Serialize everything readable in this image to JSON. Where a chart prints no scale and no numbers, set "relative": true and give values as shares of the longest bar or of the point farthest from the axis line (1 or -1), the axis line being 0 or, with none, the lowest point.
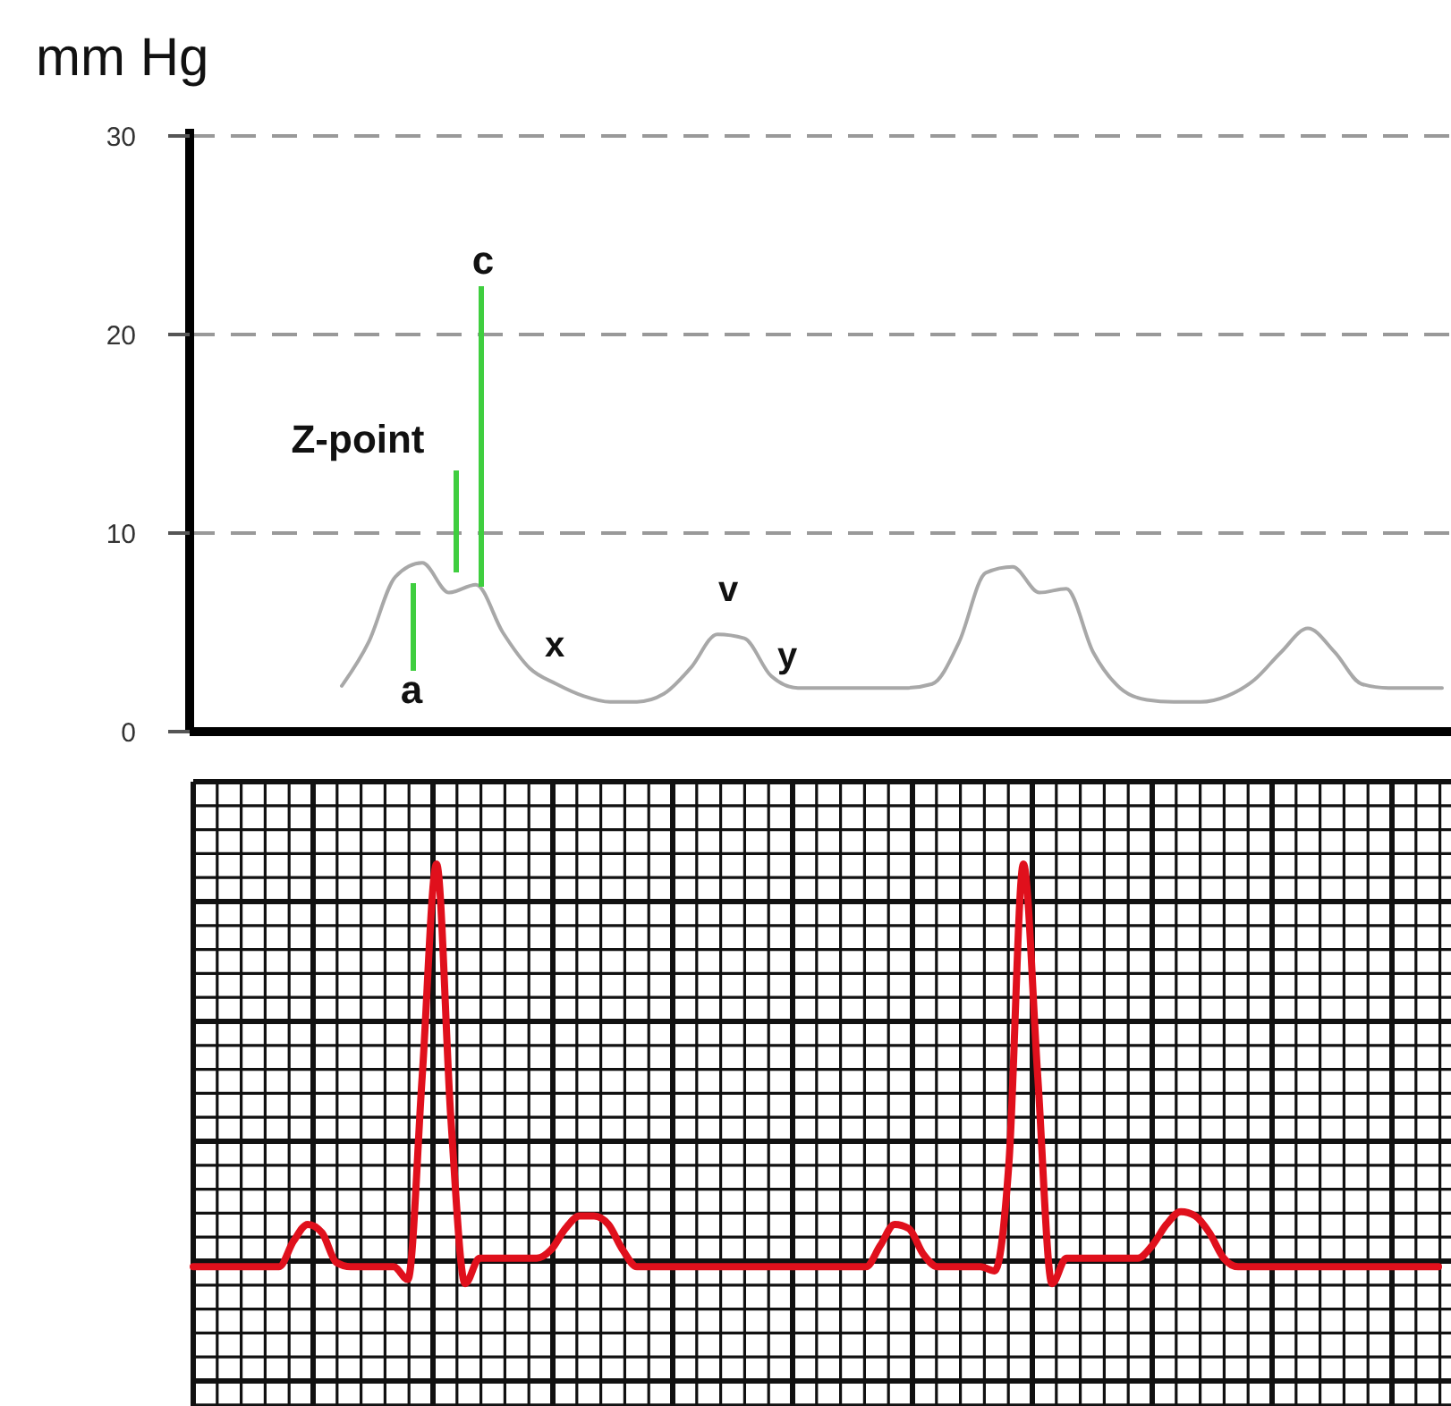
{
  "chart_data": [
    {
      "type": "line",
      "ylabel": "mm Hg",
      "categories": [
        null,
        null,
        null,
        null,
        null,
        null,
        null,
        null,
        null,
        null,
        null,
        null,
        null,
        null,
        null,
        null,
        null,
        null,
        null,
        null,
        null,
        null,
        null,
        null,
        null,
        null,
        null,
        null,
        null,
        null,
        null,
        null,
        null,
        null,
        null,
        null,
        null,
        null,
        null,
        null,
        null,
        null
      ],
      "series": [
        {
          "color": "#a8a8a8",
          "values": [
            2.3,
            4.5,
            7.8,
            8.5,
            7.0,
            7.4,
            5.0,
            3.2,
            2.4,
            1.8,
            1.5,
            1.5,
            1.9,
            3.2,
            4.9,
            4.7,
            2.8,
            2.2,
            2.2,
            2.2,
            2.2,
            2.2,
            2.4,
            4.5,
            8.0,
            8.3,
            7.0,
            7.2,
            4.0,
            2.2,
            1.6,
            1.5,
            1.5,
            1.8,
            2.6,
            4.0,
            5.2,
            4.0,
            2.4,
            2.2,
            2.2,
            2.2
          ]
        }
      ],
      "ylim": [
        0,
        30
      ],
      "yticks": [
        0,
        10,
        20,
        30
      ],
      "grid": "y",
      "line_style": "solid",
      "marker": "none",
      "annotations": [
        "c",
        "Z-point",
        "a",
        "x",
        "v",
        "y"
      ]
    },
    {
      "type": "line",
      "relative": true,
      "grid": true,
      "line_style": "solid",
      "marker": "none",
      "categories": [
        null,
        null,
        null,
        null,
        null,
        null,
        null,
        null,
        null,
        null,
        null,
        null,
        null,
        null,
        null,
        null,
        null,
        null,
        null,
        null,
        null,
        null,
        null,
        null,
        null,
        null,
        null,
        null,
        null,
        null,
        null,
        null,
        null,
        null,
        null,
        null,
        null,
        null,
        null,
        null,
        null,
        null,
        null,
        null,
        null,
        null,
        null,
        null,
        null,
        null,
        null,
        null,
        null,
        null,
        null,
        null,
        null,
        null,
        null,
        null,
        null,
        null,
        null,
        null,
        null,
        null,
        null,
        null,
        null,
        null,
        null,
        null,
        null,
        null,
        null,
        null,
        null,
        null,
        null,
        null,
        null,
        null,
        null,
        null,
        null,
        null,
        null,
        null
      ],
      "series": [
        {
          "color": "#e0101c",
          "values": [
            0.05,
            0.05,
            0.05,
            0.05,
            0.05,
            0.05,
            0.05,
            0.11,
            0.15,
            0.13,
            0.06,
            0.05,
            0.05,
            0.05,
            0.05,
            0.02,
            0.5,
            1,
            0.4,
            0.01,
            0.07,
            0.07,
            0.07,
            0.07,
            0.07,
            0.09,
            0.14,
            0.17,
            0.17,
            0.15,
            0.09,
            0.05,
            0.05,
            0.05,
            0.05,
            0.05,
            0.05,
            0.05,
            0.05,
            0.05,
            0.05,
            0.05,
            0.05,
            0.05,
            0.05,
            0.05,
            0.05,
            0.05,
            0.1,
            0.15,
            0.14,
            0.08,
            0.05,
            0.05,
            0.05,
            0.05,
            0.04,
            0.3,
            1,
            0.5,
            0.01,
            0.07,
            0.07,
            0.07,
            0.07,
            0.07,
            0.07,
            0.1,
            0.15,
            0.18,
            0.17,
            0.13,
            0.07,
            0.05,
            0.05,
            0.05,
            0.05,
            0.05,
            0.05,
            0.05,
            0.05,
            0.05,
            0.05,
            0.05,
            0.05,
            0.05,
            0.05,
            0.05
          ]
        }
      ]
    }
  ]
}
